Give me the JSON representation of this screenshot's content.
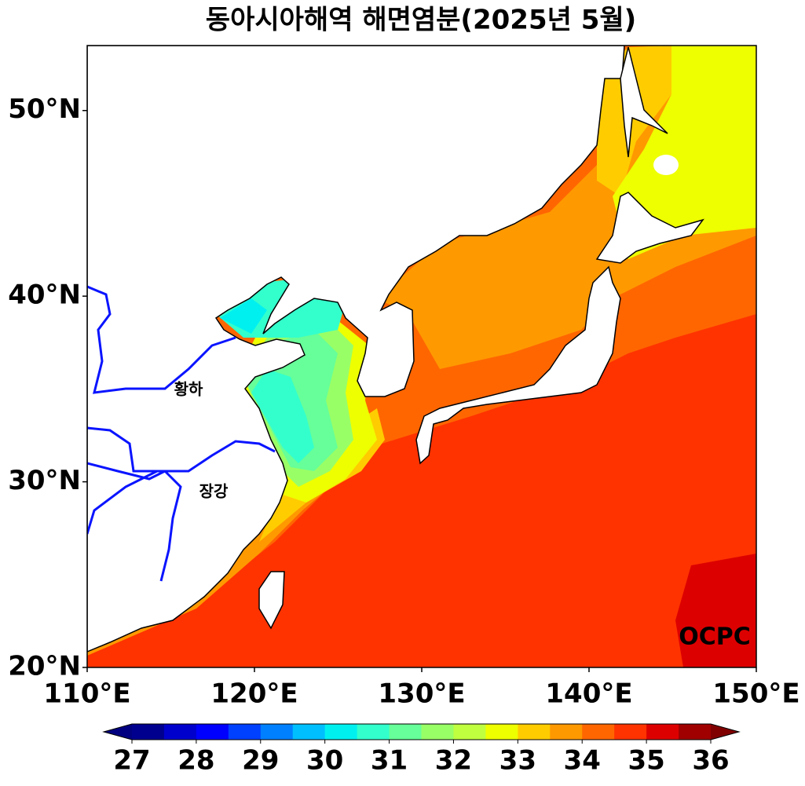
{
  "map": {
    "title": "동아시아해역 해면염분(2025년 5월)",
    "xlim": [
      110,
      150
    ],
    "ylim": [
      20,
      53.5
    ],
    "xticks": [
      {
        "value": 110,
        "label": "110°E"
      },
      {
        "value": 120,
        "label": "120°E"
      },
      {
        "value": 130,
        "label": "130°E"
      },
      {
        "value": 140,
        "label": "140°E"
      },
      {
        "value": 150,
        "label": "150°E"
      }
    ],
    "yticks": [
      {
        "value": 20,
        "label": "20°N"
      },
      {
        "value": 30,
        "label": "30°N"
      },
      {
        "value": 40,
        "label": "40°N"
      },
      {
        "value": 50,
        "label": "50°N"
      }
    ],
    "river_labels": [
      "황하",
      "장강"
    ],
    "watermark": "OCPC",
    "colorbar": {
      "lim": [
        27,
        36
      ],
      "ticks": [
        27,
        28,
        29,
        30,
        31,
        32,
        33,
        34,
        35,
        36
      ],
      "colors": [
        "#00008f",
        "#0000cd",
        "#0000ff",
        "#0040ff",
        "#0080ff",
        "#00bfff",
        "#00f0f0",
        "#33ffcc",
        "#66ff99",
        "#99ff66",
        "#c0ff40",
        "#eeff00",
        "#ffcc00",
        "#ff9900",
        "#ff6600",
        "#ff3300",
        "#dd0000",
        "#a00000"
      ],
      "under": "#000080",
      "over": "#800000"
    }
  }
}
